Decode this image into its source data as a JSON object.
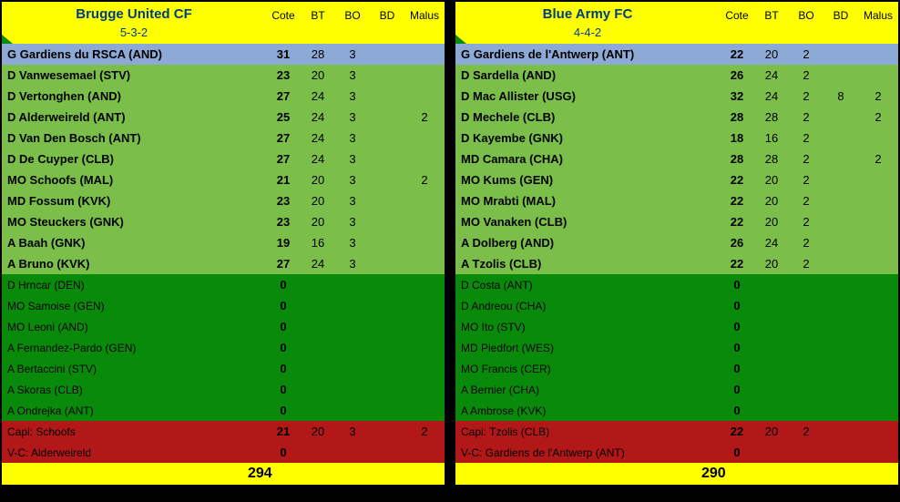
{
  "columns": {
    "cote": "Cote",
    "bt": "BT",
    "bo": "BO",
    "bd": "BD",
    "malus": "Malus"
  },
  "teams": [
    {
      "name": "Brugge United CF",
      "formation": "5-3-2",
      "total": 294,
      "starters": [
        {
          "pos": "G",
          "label": "G Gardiens du RSCA (AND)",
          "cote": 31,
          "bt": 28,
          "bo": 3,
          "bd": "",
          "malus": ""
        },
        {
          "pos": "D",
          "label": "D Vanwesemael (STV)",
          "cote": 23,
          "bt": 20,
          "bo": 3,
          "bd": "",
          "malus": ""
        },
        {
          "pos": "D",
          "label": "D Vertonghen (AND)",
          "cote": 27,
          "bt": 24,
          "bo": 3,
          "bd": "",
          "malus": ""
        },
        {
          "pos": "D",
          "label": "D Alderweireld (ANT)",
          "cote": 25,
          "bt": 24,
          "bo": 3,
          "bd": "",
          "malus": 2
        },
        {
          "pos": "D",
          "label": "D Van Den Bosch (ANT)",
          "cote": 27,
          "bt": 24,
          "bo": 3,
          "bd": "",
          "malus": ""
        },
        {
          "pos": "D",
          "label": "D De Cuyper (CLB)",
          "cote": 27,
          "bt": 24,
          "bo": 3,
          "bd": "",
          "malus": ""
        },
        {
          "pos": "MO",
          "label": "MO Schoofs (MAL)",
          "cote": 21,
          "bt": 20,
          "bo": 3,
          "bd": "",
          "malus": 2
        },
        {
          "pos": "MD",
          "label": "MD Fossum (KVK)",
          "cote": 23,
          "bt": 20,
          "bo": 3,
          "bd": "",
          "malus": ""
        },
        {
          "pos": "MO",
          "label": "MO Steuckers (GNK)",
          "cote": 23,
          "bt": 20,
          "bo": 3,
          "bd": "",
          "malus": ""
        },
        {
          "pos": "A",
          "label": "A Baah (GNK)",
          "cote": 19,
          "bt": 16,
          "bo": 3,
          "bd": "",
          "malus": ""
        },
        {
          "pos": "A",
          "label": "A Bruno (KVK)",
          "cote": 27,
          "bt": 24,
          "bo": 3,
          "bd": "",
          "malus": ""
        }
      ],
      "bench": [
        {
          "label": "D Hrncar (DEN)",
          "cote": 0
        },
        {
          "label": "MO Samoise (GEN)",
          "cote": 0
        },
        {
          "label": "MO Leoni (AND)",
          "cote": 0
        },
        {
          "label": "A Fernandez-Pardo (GEN)",
          "cote": 0
        },
        {
          "label": "A Bertaccini (STV)",
          "cote": 0
        },
        {
          "label": "A Skoras (CLB)",
          "cote": 0
        },
        {
          "label": "A Ondrejka (ANT)",
          "cote": 0
        }
      ],
      "captain": {
        "label": "Capi: Schoofs",
        "cote": 21,
        "bt": 20,
        "bo": 3,
        "bd": "",
        "malus": 2
      },
      "viceCaptain": {
        "label": "V-C: Alderweireld",
        "cote": 0,
        "bt": "",
        "bo": "",
        "bd": "",
        "malus": ""
      }
    },
    {
      "name": "Blue Army FC",
      "formation": "4-4-2",
      "total": 290,
      "starters": [
        {
          "pos": "G",
          "label": "G Gardiens de l'Antwerp (ANT)",
          "cote": 22,
          "bt": 20,
          "bo": 2,
          "bd": "",
          "malus": ""
        },
        {
          "pos": "D",
          "label": "D Sardella (AND)",
          "cote": 26,
          "bt": 24,
          "bo": 2,
          "bd": "",
          "malus": ""
        },
        {
          "pos": "D",
          "label": "D Mac Allister (USG)",
          "cote": 32,
          "bt": 24,
          "bo": 2,
          "bd": 8,
          "malus": 2
        },
        {
          "pos": "D",
          "label": "D Mechele (CLB)",
          "cote": 28,
          "bt": 28,
          "bo": 2,
          "bd": "",
          "malus": 2
        },
        {
          "pos": "D",
          "label": "D Kayembe (GNK)",
          "cote": 18,
          "bt": 16,
          "bo": 2,
          "bd": "",
          "malus": ""
        },
        {
          "pos": "MD",
          "label": "MD Camara (CHA)",
          "cote": 28,
          "bt": 28,
          "bo": 2,
          "bd": "",
          "malus": 2
        },
        {
          "pos": "MO",
          "label": "MO Kums (GEN)",
          "cote": 22,
          "bt": 20,
          "bo": 2,
          "bd": "",
          "malus": ""
        },
        {
          "pos": "MO",
          "label": "MO Mrabti (MAL)",
          "cote": 22,
          "bt": 20,
          "bo": 2,
          "bd": "",
          "malus": ""
        },
        {
          "pos": "MO",
          "label": "MO Vanaken (CLB)",
          "cote": 22,
          "bt": 20,
          "bo": 2,
          "bd": "",
          "malus": ""
        },
        {
          "pos": "A",
          "label": "A Dolberg (AND)",
          "cote": 26,
          "bt": 24,
          "bo": 2,
          "bd": "",
          "malus": ""
        },
        {
          "pos": "A",
          "label": "A Tzolis (CLB)",
          "cote": 22,
          "bt": 20,
          "bo": 2,
          "bd": "",
          "malus": ""
        }
      ],
      "bench": [
        {
          "label": "D Costa (ANT)",
          "cote": 0
        },
        {
          "label": "D Andreou (CHA)",
          "cote": 0
        },
        {
          "label": "MO Ito (STV)",
          "cote": 0
        },
        {
          "label": "MD Piedfort (WES)",
          "cote": 0
        },
        {
          "label": "MO Francis (CER)",
          "cote": 0
        },
        {
          "label": "A Bernier (CHA)",
          "cote": 0
        },
        {
          "label": "A Ambrose (KVK)",
          "cote": 0
        }
      ],
      "captain": {
        "label": "Capi: Tzolis (CLB)",
        "cote": 22,
        "bt": 20,
        "bo": 2,
        "bd": "",
        "malus": ""
      },
      "viceCaptain": {
        "label": "V-C: Gardiens de l'Antwerp (ANT)",
        "cote": 0,
        "bt": "",
        "bo": "",
        "bd": "",
        "malus": ""
      }
    }
  ],
  "colors": {
    "headerBg": "#ffff00",
    "gkRow": "#8da9d6",
    "starterRow": "#7bbf4a",
    "benchRow": "#0a8a0a",
    "capRow": "#b21818",
    "teamNameColor": "#003f7d"
  }
}
